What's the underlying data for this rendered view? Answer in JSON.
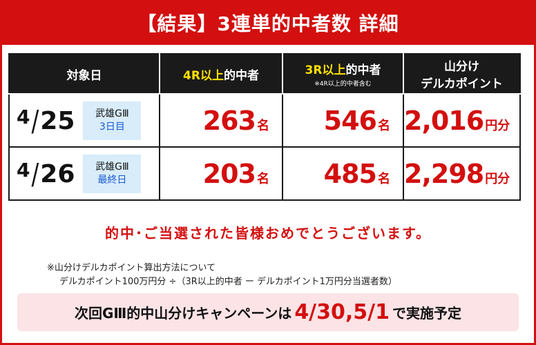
{
  "title": "【結果】3連単的中者数 詳細",
  "headers": {
    "date": "対象日",
    "col4r_hl": "4R以上",
    "col4r_rest": "的中者",
    "col3r_hl": "3R以上",
    "col3r_rest": "的中者",
    "col3r_sub": "※4R以上的中者含む",
    "delca_line1": "山分け",
    "delca_line2": "デルカポイント"
  },
  "rows": [
    {
      "month": "4",
      "day": "25",
      "venue": "武雄GⅢ",
      "day_label": "3日目",
      "r4": "263",
      "r4_unit": "名",
      "r3": "546",
      "r3_unit": "名",
      "delca": "2,016",
      "delca_unit": "円分"
    },
    {
      "month": "4",
      "day": "26",
      "venue": "武雄GⅢ",
      "day_label": "最終日",
      "r4": "203",
      "r4_unit": "名",
      "r3": "485",
      "r3_unit": "名",
      "delca": "2,298",
      "delca_unit": "円分"
    }
  ],
  "congrats": "的中･ご当選された皆様おめでとうございます。",
  "note_line1": "※山分けデルカポイント算出方法について",
  "note_line2": "デルカポイント100万円分 ÷（3R以上的中者 ー デルカポイント1万円分当選者数）",
  "campaign": {
    "prefix": "次回GⅢ的中山分けキャンペーンは",
    "dates": "4/30,5/1",
    "suffix": "で実施予定"
  },
  "colors": {
    "brand_red": "#d30f0f",
    "header_black": "#1a1a1a",
    "highlight_yellow": "#ffe000",
    "badge_blue": "#d8ecfa",
    "campaign_pink": "#fbe3e6"
  }
}
